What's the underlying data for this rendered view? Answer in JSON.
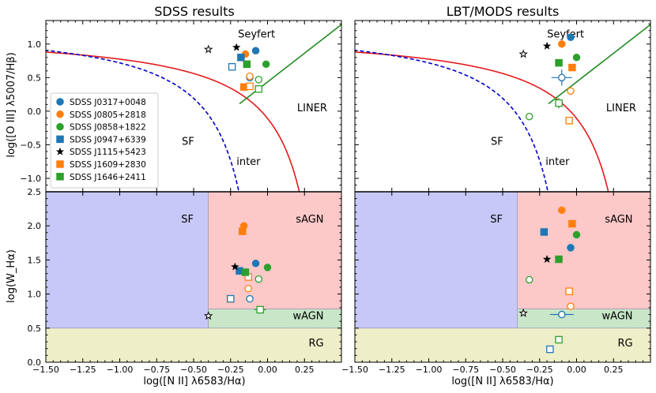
{
  "titles": [
    "SDSS results",
    "LBT/MODS results"
  ],
  "axes": {
    "x_label": "log([N II] λ6583/Hα)",
    "bpt_y_label": "log([O III] λ5007/Hβ)",
    "whan_y_label": "log(W_Hα)",
    "x_range": [
      -1.5,
      0.5
    ],
    "bpt_y_range": [
      -1.2,
      1.35
    ],
    "whan_y_range": [
      0.0,
      2.5
    ],
    "x_ticks": [
      "−1.50",
      "−1.25",
      "−1.00",
      "−0.75",
      "−0.50",
      "−0.25",
      "0.00",
      "0.25"
    ],
    "x_tick_values": [
      -1.5,
      -1.25,
      -1.0,
      -0.75,
      -0.5,
      -0.25,
      0.0,
      0.25
    ],
    "bpt_y_ticks": [
      "−1.0",
      "−0.5",
      "0.0",
      "0.5",
      "1.0"
    ],
    "bpt_y_tick_values": [
      -1.0,
      -0.5,
      0.0,
      0.5,
      1.0
    ],
    "whan_y_ticks": [
      "0.0",
      "0.5",
      "1.0",
      "1.5",
      "2.0",
      "2.5"
    ],
    "whan_y_tick_values": [
      0.0,
      0.5,
      1.0,
      1.5,
      2.0,
      2.5
    ]
  },
  "bpt_region_labels": {
    "seyfert": "Seyfert",
    "liner": "LINER",
    "sf": "SF",
    "inter": "inter"
  },
  "whan_region_labels": {
    "sf": "SF",
    "sagn": "sAGN",
    "wagn": "wAGN",
    "rg": "RG"
  },
  "colors": {
    "J0317+0048": "#1f77b4",
    "J0805+2818": "#ff7f0e",
    "J0858+1822": "#2ca02c",
    "J0947+6339": "#1f77b4",
    "J1115+5423": "#000000",
    "J1609+2830": "#ff7f0e",
    "J1646+2411": "#2ca02c",
    "kewley": "#e41a1c",
    "kauffmann": "#0000cc",
    "liner_line": "#228b22",
    "whan_sf": "#c8c8f8",
    "whan_sagn": "#fcc8c8",
    "whan_wagn": "#c8e6c8",
    "whan_rg": "#eeeec8"
  },
  "legend": [
    {
      "label": "SDSS J0317+0048",
      "marker": "circle",
      "color_key": "J0317+0048"
    },
    {
      "label": "SDSS J0805+2818",
      "marker": "circle",
      "color_key": "J0805+2818"
    },
    {
      "label": "SDSS J0858+1822",
      "marker": "circle",
      "color_key": "J0858+1822"
    },
    {
      "label": "SDSS J0947+6339",
      "marker": "square",
      "color_key": "J0947+6339"
    },
    {
      "label": "SDSS J1115+5423",
      "marker": "star",
      "color_key": "J1115+5423"
    },
    {
      "label": "SDSS J1609+2830",
      "marker": "square",
      "color_key": "J1609+2830"
    },
    {
      "label": "SDSS J1646+2411",
      "marker": "square",
      "color_key": "J1646+2411"
    }
  ],
  "chart_data": [
    {
      "type": "scatter",
      "title": "SDSS results",
      "panel": "BPT",
      "xlabel": "log([N II] λ6583/Hα)",
      "ylabel": "log([O III] λ5007/Hβ)",
      "xlim": [
        -1.5,
        0.5
      ],
      "ylim": [
        -1.2,
        1.35
      ],
      "points": [
        {
          "obj": "J0317+0048",
          "marker": "circle",
          "filled": true,
          "x": -0.08,
          "y": 0.9
        },
        {
          "obj": "J0317+0048",
          "marker": "circle",
          "filled": false,
          "x": -0.12,
          "y": 0.5
        },
        {
          "obj": "J0805+2818",
          "marker": "circle",
          "filled": true,
          "x": -0.15,
          "y": 0.85
        },
        {
          "obj": "J0805+2818",
          "marker": "circle",
          "filled": false,
          "x": -0.12,
          "y": 0.52
        },
        {
          "obj": "J0858+1822",
          "marker": "circle",
          "filled": true,
          "x": -0.01,
          "y": 0.7
        },
        {
          "obj": "J0858+1822",
          "marker": "circle",
          "filled": false,
          "x": -0.06,
          "y": 0.47
        },
        {
          "obj": "J0947+6339",
          "marker": "square",
          "filled": true,
          "x": -0.18,
          "y": 0.8
        },
        {
          "obj": "J0947+6339",
          "marker": "square",
          "filled": false,
          "x": -0.24,
          "y": 0.66
        },
        {
          "obj": "J1115+5423",
          "marker": "star",
          "filled": true,
          "x": -0.21,
          "y": 0.95
        },
        {
          "obj": "J1115+5423",
          "marker": "star",
          "filled": false,
          "x": -0.4,
          "y": 0.92
        },
        {
          "obj": "J1609+2830",
          "marker": "square",
          "filled": true,
          "x": -0.16,
          "y": 0.36
        },
        {
          "obj": "J1609+2830",
          "marker": "square",
          "filled": false,
          "x": -0.12,
          "y": 0.37
        },
        {
          "obj": "J1646+2411",
          "marker": "square",
          "filled": true,
          "x": -0.14,
          "y": 0.7
        },
        {
          "obj": "J1646+2411",
          "marker": "square",
          "filled": false,
          "x": -0.06,
          "y": 0.33
        }
      ]
    },
    {
      "type": "scatter",
      "title": "LBT/MODS results",
      "panel": "BPT",
      "xlabel": "log([N II] λ6583/Hα)",
      "ylabel": "log([O III] λ5007/Hβ)",
      "xlim": [
        -1.5,
        0.5
      ],
      "ylim": [
        -1.2,
        1.35
      ],
      "points": [
        {
          "obj": "J0317+0048",
          "marker": "circle",
          "filled": true,
          "x": -0.04,
          "y": 1.1
        },
        {
          "obj": "J0317+0048",
          "marker": "circle",
          "filled": false,
          "x": -0.1,
          "y": 0.5,
          "xerr": 0.07,
          "yerr": 0.12
        },
        {
          "obj": "J0805+2818",
          "marker": "circle",
          "filled": true,
          "x": -0.1,
          "y": 1.0
        },
        {
          "obj": "J0805+2818",
          "marker": "circle",
          "filled": false,
          "x": -0.04,
          "y": 0.3
        },
        {
          "obj": "J0858+1822",
          "marker": "circle",
          "filled": true,
          "x": 0.0,
          "y": 0.8
        },
        {
          "obj": "J0858+1822",
          "marker": "circle",
          "filled": false,
          "x": -0.32,
          "y": -0.08
        },
        {
          "obj": "J1115+5423",
          "marker": "star",
          "filled": true,
          "x": -0.2,
          "y": 0.97
        },
        {
          "obj": "J1115+5423",
          "marker": "star",
          "filled": false,
          "x": -0.36,
          "y": 0.85
        },
        {
          "obj": "J1609+2830",
          "marker": "square",
          "filled": true,
          "x": -0.03,
          "y": 0.65
        },
        {
          "obj": "J1609+2830",
          "marker": "square",
          "filled": false,
          "x": -0.05,
          "y": -0.14
        },
        {
          "obj": "J1646+2411",
          "marker": "square",
          "filled": true,
          "x": -0.12,
          "y": 0.72
        },
        {
          "obj": "J1646+2411",
          "marker": "square",
          "filled": false,
          "x": -0.12,
          "y": 0.12,
          "yerr": 0.08
        }
      ]
    },
    {
      "type": "scatter",
      "title": "SDSS results",
      "panel": "WHAN",
      "xlabel": "log([N II] λ6583/Hα)",
      "ylabel": "log(W_Hα)",
      "xlim": [
        -1.5,
        0.5
      ],
      "ylim": [
        0,
        2.5
      ],
      "points": [
        {
          "obj": "J0317+0048",
          "marker": "circle",
          "filled": true,
          "x": -0.08,
          "y": 1.45
        },
        {
          "obj": "J0317+0048",
          "marker": "circle",
          "filled": false,
          "x": -0.12,
          "y": 0.93
        },
        {
          "obj": "J0805+2818",
          "marker": "circle",
          "filled": true,
          "x": -0.16,
          "y": 2.0
        },
        {
          "obj": "J0805+2818",
          "marker": "circle",
          "filled": false,
          "x": -0.13,
          "y": 1.08
        },
        {
          "obj": "J0858+1822",
          "marker": "circle",
          "filled": true,
          "x": 0.0,
          "y": 1.39
        },
        {
          "obj": "J0858+1822",
          "marker": "circle",
          "filled": false,
          "x": -0.06,
          "y": 1.22
        },
        {
          "obj": "J0947+6339",
          "marker": "square",
          "filled": true,
          "x": -0.19,
          "y": 1.34
        },
        {
          "obj": "J0947+6339",
          "marker": "square",
          "filled": false,
          "x": -0.25,
          "y": 0.93
        },
        {
          "obj": "J1115+5423",
          "marker": "star",
          "filled": true,
          "x": -0.22,
          "y": 1.4
        },
        {
          "obj": "J1115+5423",
          "marker": "star",
          "filled": false,
          "x": -0.4,
          "y": 0.68
        },
        {
          "obj": "J1609+2830",
          "marker": "square",
          "filled": true,
          "x": -0.17,
          "y": 1.92
        },
        {
          "obj": "J1609+2830",
          "marker": "square",
          "filled": false,
          "x": -0.13,
          "y": 1.25
        },
        {
          "obj": "J1646+2411",
          "marker": "square",
          "filled": true,
          "x": -0.15,
          "y": 1.32
        },
        {
          "obj": "J1646+2411",
          "marker": "square",
          "filled": false,
          "x": -0.05,
          "y": 0.77,
          "xerr": 0.04
        }
      ],
      "regions": [
        {
          "name": "SF",
          "x": [
            -1.5,
            -0.4
          ],
          "y": [
            0.5,
            2.5
          ]
        },
        {
          "name": "sAGN",
          "x": [
            -0.4,
            0.5
          ],
          "y": [
            0.78,
            2.5
          ]
        },
        {
          "name": "wAGN",
          "x": [
            -0.4,
            0.5
          ],
          "y": [
            0.5,
            0.78
          ]
        },
        {
          "name": "RG",
          "x": [
            -1.5,
            0.5
          ],
          "y": [
            0,
            0.5
          ]
        }
      ]
    },
    {
      "type": "scatter",
      "title": "LBT/MODS results",
      "panel": "WHAN",
      "xlabel": "log([N II] λ6583/Hα)",
      "ylabel": "log(W_Hα)",
      "xlim": [
        -1.5,
        0.5
      ],
      "ylim": [
        0,
        2.5
      ],
      "points": [
        {
          "obj": "J0317+0048",
          "marker": "circle",
          "filled": true,
          "x": -0.04,
          "y": 1.68
        },
        {
          "obj": "J0317+0048",
          "marker": "circle",
          "filled": false,
          "x": -0.1,
          "y": 0.7,
          "xerr": 0.08
        },
        {
          "obj": "J0805+2818",
          "marker": "circle",
          "filled": true,
          "x": -0.1,
          "y": 2.23
        },
        {
          "obj": "J0805+2818",
          "marker": "circle",
          "filled": false,
          "x": -0.04,
          "y": 0.82
        },
        {
          "obj": "J0858+1822",
          "marker": "circle",
          "filled": true,
          "x": 0.0,
          "y": 1.87
        },
        {
          "obj": "J0858+1822",
          "marker": "circle",
          "filled": false,
          "x": -0.32,
          "y": 1.21
        },
        {
          "obj": "J0947+6339",
          "marker": "square",
          "filled": true,
          "x": -0.22,
          "y": 1.91
        },
        {
          "obj": "J0947+6339",
          "marker": "square",
          "filled": false,
          "x": -0.18,
          "y": 0.19
        },
        {
          "obj": "J1115+5423",
          "marker": "star",
          "filled": true,
          "x": -0.2,
          "y": 1.51
        },
        {
          "obj": "J1115+5423",
          "marker": "star",
          "filled": false,
          "x": -0.36,
          "y": 0.72
        },
        {
          "obj": "J1609+2830",
          "marker": "square",
          "filled": true,
          "x": -0.03,
          "y": 2.03
        },
        {
          "obj": "J1609+2830",
          "marker": "square",
          "filled": false,
          "x": -0.05,
          "y": 1.04
        },
        {
          "obj": "J1646+2411",
          "marker": "square",
          "filled": true,
          "x": -0.12,
          "y": 1.51
        },
        {
          "obj": "J1646+2411",
          "marker": "square",
          "filled": false,
          "x": -0.12,
          "y": 0.33
        }
      ],
      "regions": [
        {
          "name": "SF",
          "x": [
            -1.5,
            -0.4
          ],
          "y": [
            0.5,
            2.5
          ]
        },
        {
          "name": "sAGN",
          "x": [
            -0.4,
            0.5
          ],
          "y": [
            0.78,
            2.5
          ]
        },
        {
          "name": "wAGN",
          "x": [
            -0.4,
            0.5
          ],
          "y": [
            0.5,
            0.78
          ]
        },
        {
          "name": "RG",
          "x": [
            -1.5,
            0.5
          ],
          "y": [
            0,
            0.5
          ]
        }
      ]
    }
  ]
}
